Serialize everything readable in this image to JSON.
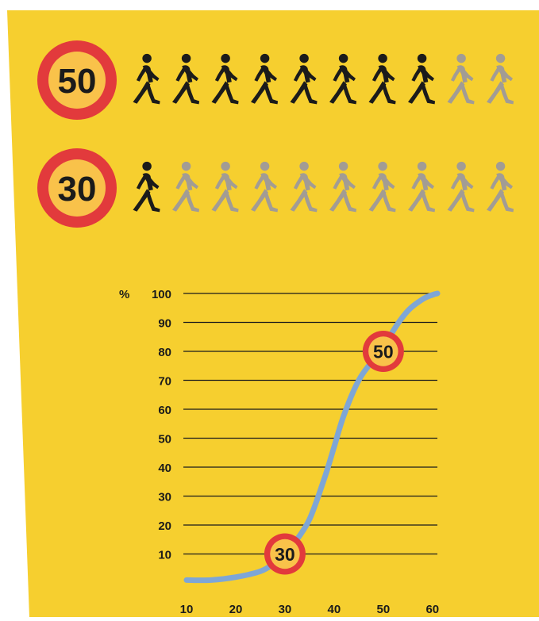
{
  "colors": {
    "background": "#f6cf2f",
    "sign_ring": "#e23a3c",
    "sign_fill": "#f9c24a",
    "pedestrian_dark": "#1b1b1b",
    "pedestrian_light": "#a29c94",
    "curve": "#7ea6d6",
    "grid": "#1b1b1b",
    "text": "#1b1b1b"
  },
  "rows": [
    {
      "speed_label": "50",
      "total_pedestrians": 10,
      "dark_pedestrians": 8
    },
    {
      "speed_label": "30",
      "total_pedestrians": 10,
      "dark_pedestrians": 1
    }
  ],
  "icons": [
    "speed-limit-sign-icon",
    "pedestrian-icon"
  ],
  "chart_data": {
    "type": "line",
    "y_prefix": "%",
    "x_ticks": [
      "10",
      "20",
      "30",
      "40",
      "50",
      "60"
    ],
    "y_ticks": [
      "10",
      "20",
      "30",
      "40",
      "50",
      "60",
      "70",
      "80",
      "90",
      "100"
    ],
    "xlim": [
      10,
      61
    ],
    "ylim": [
      0,
      100
    ],
    "grid": "horizontal",
    "series": [
      {
        "x": [
          10,
          15,
          20,
          25,
          28,
          30,
          32,
          35,
          38,
          40,
          42,
          45,
          48,
          50,
          52,
          55,
          58,
          60,
          61
        ],
        "y": [
          1,
          1,
          2,
          4,
          7,
          10,
          14,
          22,
          36,
          47,
          58,
          70,
          77,
          80,
          87,
          94,
          98,
          99.5,
          100
        ]
      }
    ],
    "markers": [
      {
        "label": "30",
        "x": 30,
        "y": 10
      },
      {
        "label": "50",
        "x": 50,
        "y": 80
      }
    ]
  }
}
